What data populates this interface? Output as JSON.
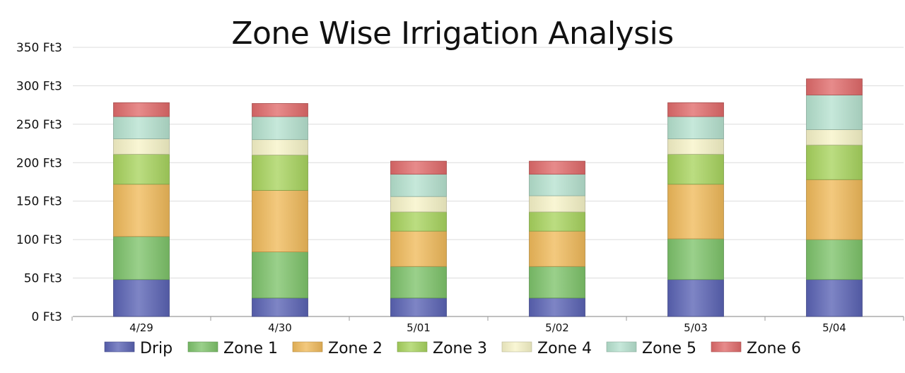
{
  "chart_data": {
    "type": "bar",
    "stacked": true,
    "title": "Zone Wise Irrigation Analysis",
    "xlabel": "",
    "ylabel": "",
    "categories": [
      "4/29",
      "4/30",
      "5/01",
      "5/02",
      "5/03",
      "5/04"
    ],
    "ylim": [
      0,
      350
    ],
    "yticks": [
      0,
      50,
      100,
      150,
      200,
      250,
      300,
      350
    ],
    "ytick_labels": [
      "0 Ft3",
      "50 Ft3",
      "100 Ft3",
      "150 Ft3",
      "200 Ft3",
      "250 Ft3",
      "300 Ft3",
      "350 Ft3"
    ],
    "grid": true,
    "legend_position": "bottom",
    "series": [
      {
        "name": "Drip",
        "color": "#5a63b4",
        "values": [
          48,
          24,
          24,
          24,
          48,
          48
        ]
      },
      {
        "name": "Zone 1",
        "color": "#7dc36a",
        "values": [
          56,
          60,
          41,
          41,
          53,
          52
        ]
      },
      {
        "name": "Zone 2",
        "color": "#f0ba5a",
        "values": [
          68,
          80,
          46,
          46,
          71,
          78
        ]
      },
      {
        "name": "Zone 3",
        "color": "#a8d45e",
        "values": [
          39,
          46,
          25,
          25,
          39,
          45
        ]
      },
      {
        "name": "Zone 4",
        "color": "#f7f4c8",
        "values": [
          20,
          20,
          20,
          21,
          20,
          20
        ]
      },
      {
        "name": "Zone 5",
        "color": "#b6e2cf",
        "values": [
          29,
          30,
          29,
          28,
          29,
          45
        ]
      },
      {
        "name": "Zone 6",
        "color": "#e06a6a",
        "values": [
          18,
          17,
          17,
          17,
          18,
          21
        ]
      }
    ]
  }
}
